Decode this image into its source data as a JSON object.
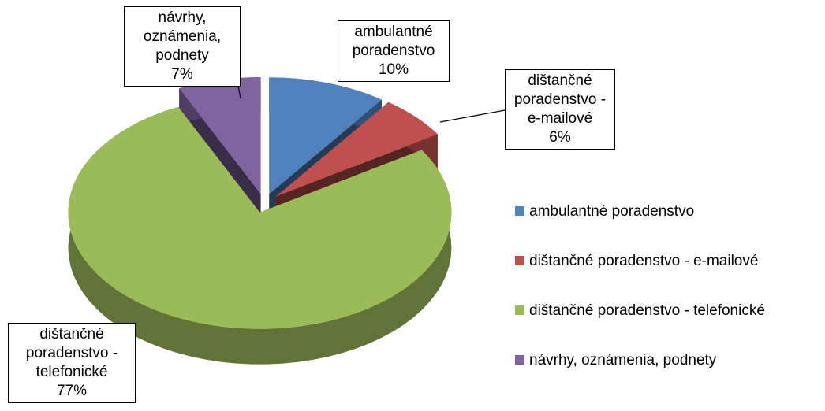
{
  "chart_data": {
    "type": "pie",
    "categories": [
      "ambulantné poradenstvo",
      "dištančné poradenstvo - e-mailové",
      "dištančné poradenstvo - telefonické",
      "návrhy, oznámenia, podnety"
    ],
    "values": [
      10,
      6,
      77,
      7
    ],
    "value_labels": [
      "10%",
      "6%",
      "77%",
      "7%"
    ],
    "colors": [
      "#4f81bd",
      "#c0504d",
      "#9bbb59",
      "#8064a2"
    ],
    "legend": "right",
    "three_d": true
  }
}
